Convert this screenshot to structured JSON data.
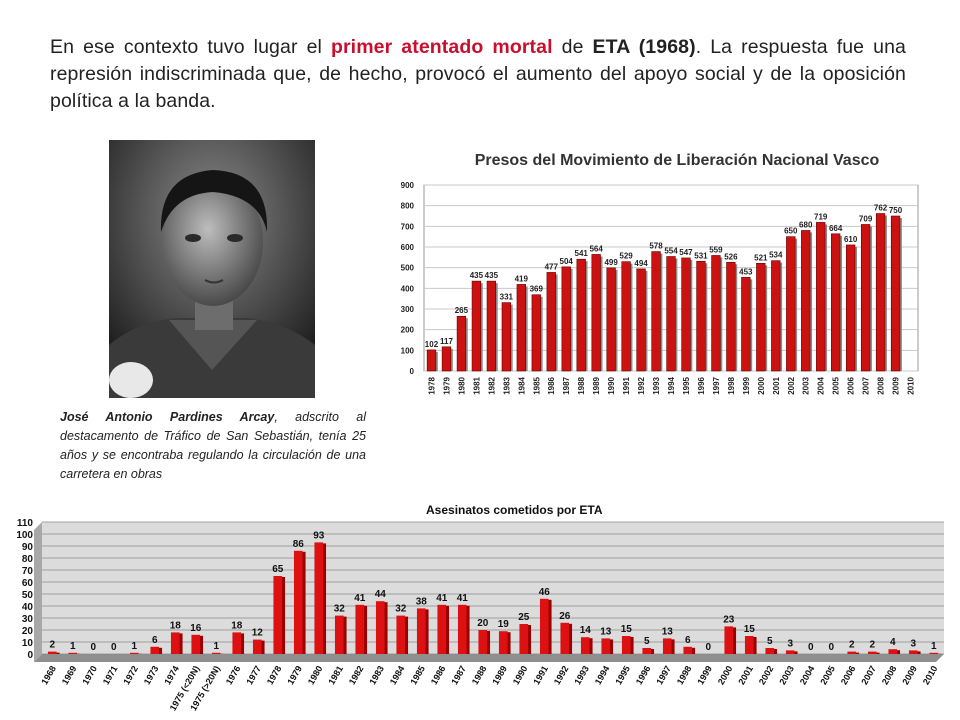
{
  "intro": {
    "t1": "En ese contexto tuvo lugar el ",
    "t2": "primer atentado mortal",
    "t3": " de ",
    "t4": "ETA (1968)",
    "t5": ". La respuesta fue una represión indiscriminada que, de hecho, provocó el aumento del apoyo social y de la oposición política a la banda."
  },
  "caption": {
    "name": "José Antonio Pardines Arcay",
    "text": ", adscrito al destacamento de Tráfico de San Sebastián, tenía 25 años y se encontraba regulando la circulación de una carretera en obras"
  },
  "chart_data": [
    {
      "type": "bar",
      "title": "Presos del Movimiento de Liberación Nacional Vasco",
      "categories": [
        "1978",
        "1979",
        "1980",
        "1981",
        "1982",
        "1983",
        "1984",
        "1985",
        "1986",
        "1987",
        "1988",
        "1989",
        "1990",
        "1991",
        "1992",
        "1993",
        "1994",
        "1995",
        "1996",
        "1997",
        "1998",
        "1999",
        "2000",
        "2001",
        "2002",
        "2003",
        "2004",
        "2005",
        "2006",
        "2007",
        "2008",
        "2009",
        "2010"
      ],
      "values": [
        102,
        117,
        265,
        435,
        435,
        331,
        419,
        369,
        477,
        504,
        541,
        564,
        499,
        529,
        494,
        578,
        554,
        547,
        531,
        559,
        526,
        453,
        521,
        534,
        650,
        680,
        719,
        664,
        610,
        709,
        762,
        750,
        null
      ],
      "ylim": [
        0,
        900
      ],
      "yticks": [
        0,
        100,
        200,
        300,
        400,
        500,
        600,
        700,
        800,
        900
      ],
      "bar_color": "#cc1111",
      "grid": true
    },
    {
      "type": "bar",
      "title": "Asesinatos cometidos por ETA",
      "categories": [
        "1968",
        "1969",
        "1970",
        "1971",
        "1972",
        "1973",
        "1974",
        "1975 (<20N)",
        "1975 (>20N)",
        "1976",
        "1977",
        "1978",
        "1979",
        "1980",
        "1981",
        "1982",
        "1983",
        "1984",
        "1985",
        "1986",
        "1987",
        "1988",
        "1989",
        "1990",
        "1991",
        "1992",
        "1993",
        "1994",
        "1995",
        "1996",
        "1997",
        "1998",
        "1999",
        "2000",
        "2001",
        "2002",
        "2003",
        "2004",
        "2005",
        "2006",
        "2007",
        "2008",
        "2009",
        "2010"
      ],
      "values": [
        2,
        1,
        0,
        0,
        1,
        6,
        18,
        16,
        1,
        18,
        12,
        65,
        86,
        93,
        32,
        41,
        44,
        32,
        38,
        41,
        41,
        20,
        19,
        25,
        46,
        26,
        14,
        13,
        15,
        5,
        13,
        6,
        0,
        23,
        15,
        5,
        3,
        0,
        0,
        2,
        2,
        4,
        3,
        1
      ],
      "ylim": [
        0,
        110
      ],
      "yticks": [
        0,
        10,
        20,
        30,
        40,
        50,
        60,
        70,
        80,
        90,
        100,
        110
      ],
      "bar_color": "#dd1111",
      "grid": true
    }
  ]
}
